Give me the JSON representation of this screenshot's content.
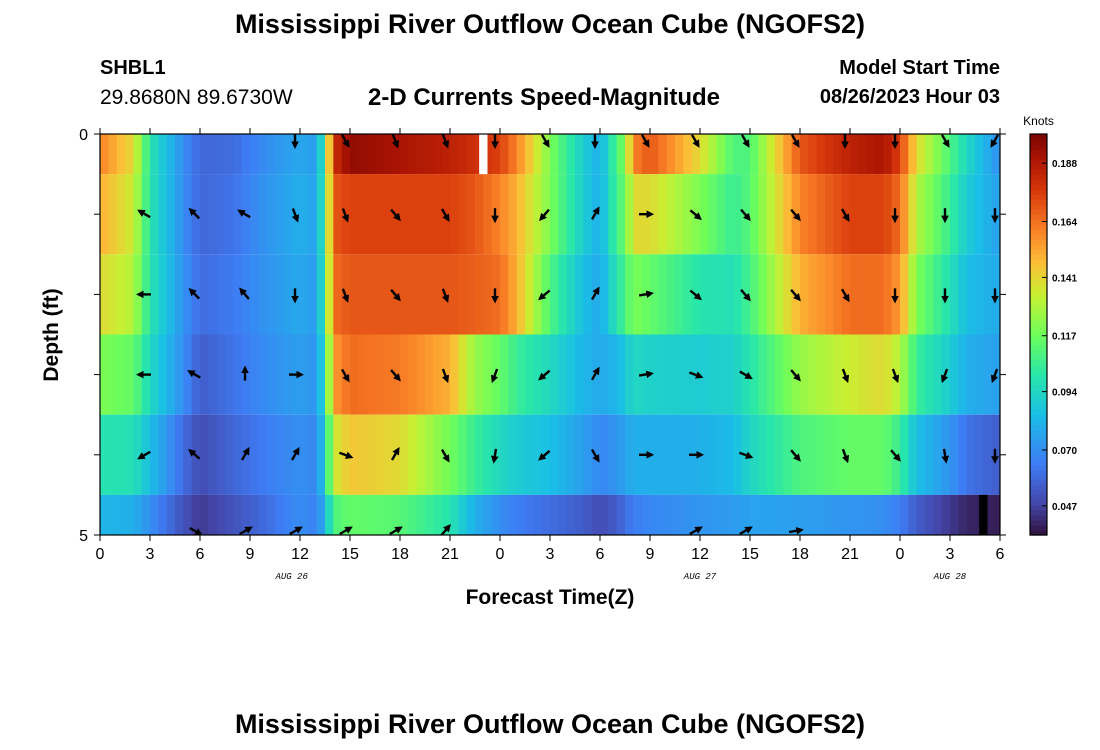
{
  "header": {
    "title": "Mississippi River Outflow Ocean Cube (NGOFS2)",
    "station": "SHBL1",
    "coords": "29.8680N  89.6730W",
    "subtitle": "2-D Currents Speed-Magnitude",
    "model_start_label": "Model Start Time",
    "model_start_value": "08/26/2023 Hour 03",
    "bottom_title": "Mississippi River Outflow Ocean Cube (NGOFS2)"
  },
  "chart_data": {
    "type": "heatmap",
    "title": "2-D Currents Speed-Magnitude",
    "xlabel": "Forecast Time(Z)",
    "ylabel": "Depth (ft)",
    "colorbar_label": "Knots",
    "colorbar_ticks": [
      "0.188",
      "0.164",
      "0.141",
      "0.117",
      "0.094",
      "0.070",
      "0.047"
    ],
    "colorbar_tick_values": [
      0.188,
      0.164,
      0.141,
      0.117,
      0.094,
      0.07,
      0.047
    ],
    "colorbar_range": [
      0.035,
      0.2
    ],
    "colormap": "turbo",
    "x_ticks": [
      "0",
      "3",
      "6",
      "9",
      "12",
      "15",
      "18",
      "21",
      "0",
      "3",
      "6",
      "9",
      "12",
      "15",
      "18",
      "21",
      "0",
      "3",
      "6"
    ],
    "x_range_hours": [
      0,
      54
    ],
    "date_labels": [
      {
        "text": "AUG 26",
        "hour": 11.5
      },
      {
        "text": "AUG 27",
        "hour": 36
      },
      {
        "text": "AUG 28",
        "hour": 51
      }
    ],
    "y_ticks": [
      "0",
      "5"
    ],
    "y_range_ft": [
      0,
      5
    ],
    "depth_rows": [
      {
        "top": 0.0,
        "bottom": 0.5
      },
      {
        "top": 0.5,
        "bottom": 1.5
      },
      {
        "top": 1.5,
        "bottom": 2.5
      },
      {
        "top": 2.5,
        "bottom": 3.5
      },
      {
        "top": 3.5,
        "bottom": 4.5
      },
      {
        "top": 4.5,
        "bottom": 5.0
      }
    ],
    "speed_hours": [
      0,
      2,
      3,
      5,
      6,
      8,
      10,
      12,
      13,
      13.5,
      14,
      15,
      18,
      21,
      22.5,
      24,
      25,
      27,
      29,
      30,
      31,
      31.5,
      32,
      33,
      36,
      38,
      39,
      42,
      45,
      47,
      48,
      49,
      51,
      52,
      54
    ],
    "speed_knots": [
      [
        0.16,
        0.14,
        0.1,
        0.07,
        0.058,
        0.06,
        0.07,
        0.078,
        0.074,
        0.11,
        0.18,
        0.195,
        0.19,
        0.185,
        0.18,
        0.175,
        0.16,
        0.12,
        0.09,
        0.08,
        0.11,
        0.12,
        0.16,
        0.17,
        0.14,
        0.11,
        0.11,
        0.17,
        0.185,
        0.19,
        0.175,
        0.14,
        0.11,
        0.095,
        0.07
      ],
      [
        0.15,
        0.135,
        0.1,
        0.07,
        0.058,
        0.062,
        0.072,
        0.08,
        0.076,
        0.11,
        0.17,
        0.175,
        0.175,
        0.175,
        0.17,
        0.16,
        0.15,
        0.12,
        0.09,
        0.08,
        0.108,
        0.115,
        0.14,
        0.14,
        0.12,
        0.105,
        0.112,
        0.16,
        0.175,
        0.175,
        0.165,
        0.13,
        0.105,
        0.09,
        0.075
      ],
      [
        0.14,
        0.13,
        0.1,
        0.072,
        0.06,
        0.064,
        0.072,
        0.078,
        0.074,
        0.108,
        0.165,
        0.17,
        0.17,
        0.17,
        0.168,
        0.165,
        0.15,
        0.11,
        0.085,
        0.078,
        0.1,
        0.108,
        0.12,
        0.115,
        0.1,
        0.098,
        0.108,
        0.15,
        0.165,
        0.165,
        0.155,
        0.12,
        0.098,
        0.085,
        0.078
      ],
      [
        0.12,
        0.115,
        0.095,
        0.07,
        0.055,
        0.062,
        0.07,
        0.075,
        0.072,
        0.1,
        0.155,
        0.165,
        0.162,
        0.15,
        0.125,
        0.115,
        0.105,
        0.095,
        0.082,
        0.078,
        0.082,
        0.088,
        0.095,
        0.092,
        0.09,
        0.092,
        0.1,
        0.125,
        0.135,
        0.14,
        0.13,
        0.105,
        0.09,
        0.08,
        0.075
      ],
      [
        0.1,
        0.098,
        0.085,
        0.06,
        0.05,
        0.058,
        0.065,
        0.07,
        0.068,
        0.092,
        0.135,
        0.145,
        0.14,
        0.118,
        0.105,
        0.095,
        0.09,
        0.085,
        0.075,
        0.068,
        0.072,
        0.076,
        0.08,
        0.08,
        0.08,
        0.084,
        0.094,
        0.11,
        0.115,
        0.115,
        0.105,
        0.085,
        0.072,
        0.062,
        0.055
      ],
      [
        0.082,
        0.08,
        0.07,
        0.052,
        0.045,
        0.052,
        0.06,
        0.07,
        0.066,
        0.082,
        0.11,
        0.115,
        0.112,
        0.1,
        0.08,
        0.07,
        0.065,
        0.06,
        0.055,
        0.05,
        0.055,
        0.06,
        0.065,
        0.068,
        0.072,
        0.074,
        0.076,
        0.075,
        0.072,
        0.07,
        0.065,
        0.055,
        0.045,
        0.04,
        0.038
      ]
    ],
    "missing_cells": [
      {
        "hour": 23.0,
        "row": 0
      },
      {
        "hour": 53.0,
        "row": 5
      }
    ],
    "vector_columns": [
      3,
      6,
      9,
      12,
      15,
      18,
      21,
      24,
      27,
      30,
      33,
      36,
      39,
      42,
      45,
      48,
      51,
      54
    ],
    "vector_direction_deg": [
      [
        null,
        null,
        null,
        180,
        150,
        160,
        160,
        180,
        150,
        180,
        150,
        150,
        150,
        150,
        180,
        180,
        150,
        210
      ],
      [
        300,
        315,
        300,
        160,
        160,
        140,
        150,
        180,
        220,
        30,
        90,
        130,
        140,
        140,
        150,
        180,
        180,
        180
      ],
      [
        270,
        315,
        320,
        180,
        160,
        140,
        160,
        180,
        230,
        30,
        80,
        130,
        140,
        140,
        150,
        180,
        180,
        180
      ],
      [
        270,
        300,
        0,
        90,
        150,
        140,
        160,
        200,
        230,
        30,
        80,
        110,
        120,
        140,
        160,
        160,
        200,
        200
      ],
      [
        240,
        310,
        30,
        30,
        110,
        30,
        150,
        190,
        230,
        150,
        90,
        90,
        110,
        140,
        160,
        140,
        170,
        180
      ],
      [
        null,
        120,
        60,
        60,
        60,
        60,
        40,
        null,
        null,
        null,
        null,
        60,
        60,
        80,
        null,
        null,
        null,
        null
      ]
    ]
  }
}
